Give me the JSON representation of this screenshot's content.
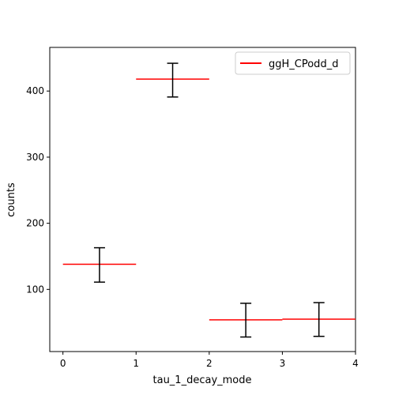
{
  "chart_data": {
    "type": "bar",
    "style": "step histogram with error bars",
    "title": "",
    "xlabel": "tau_1_decay_mode",
    "ylabel": "counts",
    "xlim": [
      -0.18,
      4.0
    ],
    "ylim": [
      6,
      466
    ],
    "xticks": [
      0,
      1,
      2,
      3,
      4
    ],
    "yticks": [
      100,
      200,
      300,
      400
    ],
    "legend_position": "top-right",
    "series": [
      {
        "name": "ggH_CPodd_d",
        "color": "#ff0000",
        "bins": [
          {
            "x0": 0,
            "x1": 1,
            "value": 138,
            "err_low": 111,
            "err_high": 163
          },
          {
            "x0": 1,
            "x1": 2,
            "value": 418,
            "err_low": 391,
            "err_high": 442
          },
          {
            "x0": 2,
            "x1": 3,
            "value": 54,
            "err_low": 28,
            "err_high": 79
          },
          {
            "x0": 3,
            "x1": 4,
            "value": 55,
            "err_low": 29,
            "err_high": 80
          }
        ]
      }
    ]
  }
}
